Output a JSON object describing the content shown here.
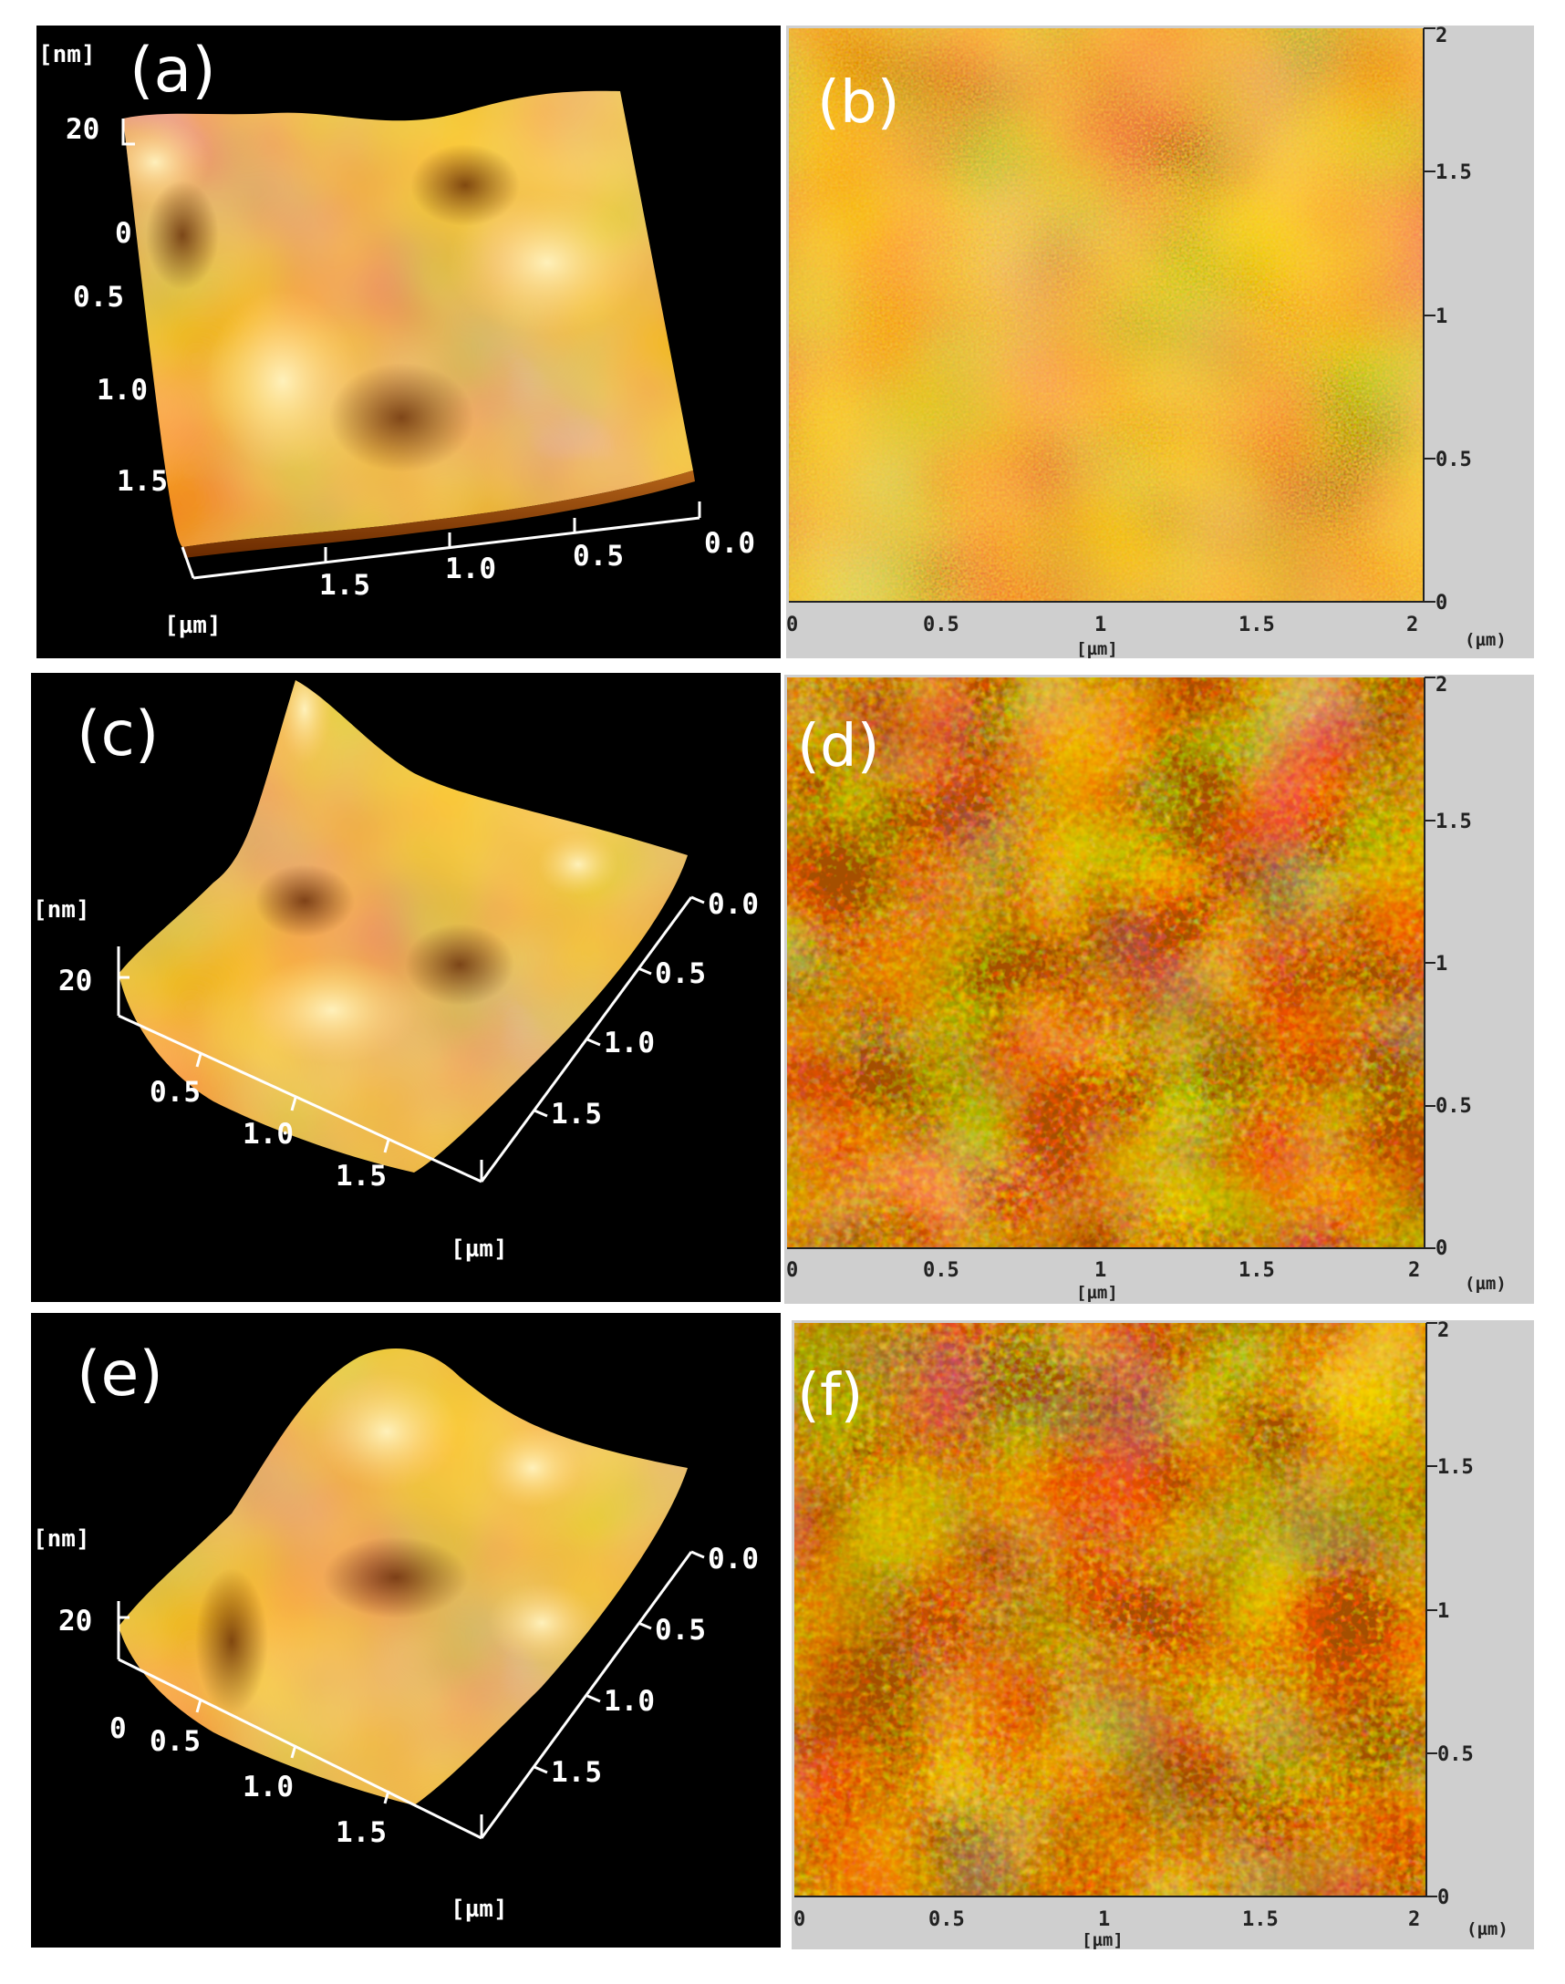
{
  "figure": {
    "panels": [
      {
        "id": "a",
        "label": "(a)",
        "kind": "3d-topography",
        "z_unit": "[nm]",
        "z_ticks": [
          "20",
          "0"
        ],
        "left_ticks": [
          "0.5",
          "1.0",
          "1.5"
        ],
        "bottom_ticks": [
          "1.5",
          "1.0",
          "0.5",
          "0.0"
        ],
        "xy_unit": "[µm]"
      },
      {
        "id": "b",
        "label": "(b)",
        "kind": "2d-height-map",
        "x_ticks": [
          "0",
          "0.5",
          "1",
          "1.5",
          "2"
        ],
        "y_ticks": [
          "0",
          "0.5",
          "1",
          "1.5",
          "2"
        ],
        "x_unit": "[µm]",
        "y_unit": "(µm)"
      },
      {
        "id": "c",
        "label": "(c)",
        "kind": "3d-topography",
        "z_unit": "[nm]",
        "z_ticks": [
          "20"
        ],
        "front_ticks": [
          "0.5",
          "1.0",
          "1.5"
        ],
        "right_ticks": [
          "0.0",
          "0.5",
          "1.0",
          "1.5"
        ],
        "xy_unit": "[µm]"
      },
      {
        "id": "d",
        "label": "(d)",
        "kind": "2d-height-map",
        "x_ticks": [
          "0",
          "0.5",
          "1",
          "1.5",
          "2"
        ],
        "y_ticks": [
          "0",
          "0.5",
          "1",
          "1.5",
          "2"
        ],
        "x_unit": "[µm]",
        "y_unit": "(µm)"
      },
      {
        "id": "e",
        "label": "(e)",
        "kind": "3d-topography",
        "z_unit": "[nm]",
        "z_ticks": [
          "20"
        ],
        "front_ticks": [
          "0",
          "0.5",
          "1.0",
          "1.5"
        ],
        "right_ticks": [
          "0.0",
          "0.5",
          "1.0",
          "1.5"
        ],
        "xy_unit": "[µm]"
      },
      {
        "id": "f",
        "label": "(f)",
        "kind": "2d-height-map",
        "x_ticks": [
          "0",
          "0.5",
          "1",
          "1.5",
          "2"
        ],
        "y_ticks": [
          "0",
          "0.5",
          "1",
          "1.5",
          "2"
        ],
        "x_unit": "[µm]",
        "y_unit": "(µm)"
      }
    ],
    "colors": {
      "background_3d": "#000000",
      "background_2d": "#cfcfcf",
      "surface_dark": "#7a2f00",
      "surface_mid": "#c96a10",
      "surface_light": "#ffd27a",
      "axis_3d": "#ffffff",
      "axis_2d": "#222222"
    }
  }
}
